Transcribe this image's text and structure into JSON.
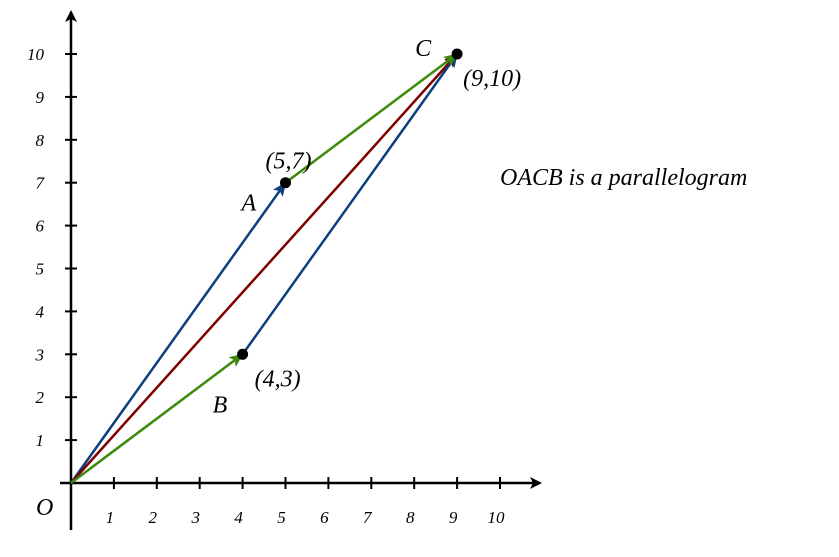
{
  "origin_label": "O",
  "xticks": [
    1,
    2,
    3,
    4,
    5,
    6,
    7,
    8,
    9,
    10
  ],
  "yticks": [
    1,
    2,
    3,
    4,
    5,
    6,
    7,
    8,
    9,
    10
  ],
  "points": [
    {
      "name": "A",
      "x": 5,
      "y": 7,
      "label": "(5,7)"
    },
    {
      "name": "B",
      "x": 4,
      "y": 3,
      "label": "(4,3)"
    },
    {
      "name": "C",
      "x": 9,
      "y": 10,
      "label": "(9,10)"
    }
  ],
  "note": "OACB is a parallelogram"
}
